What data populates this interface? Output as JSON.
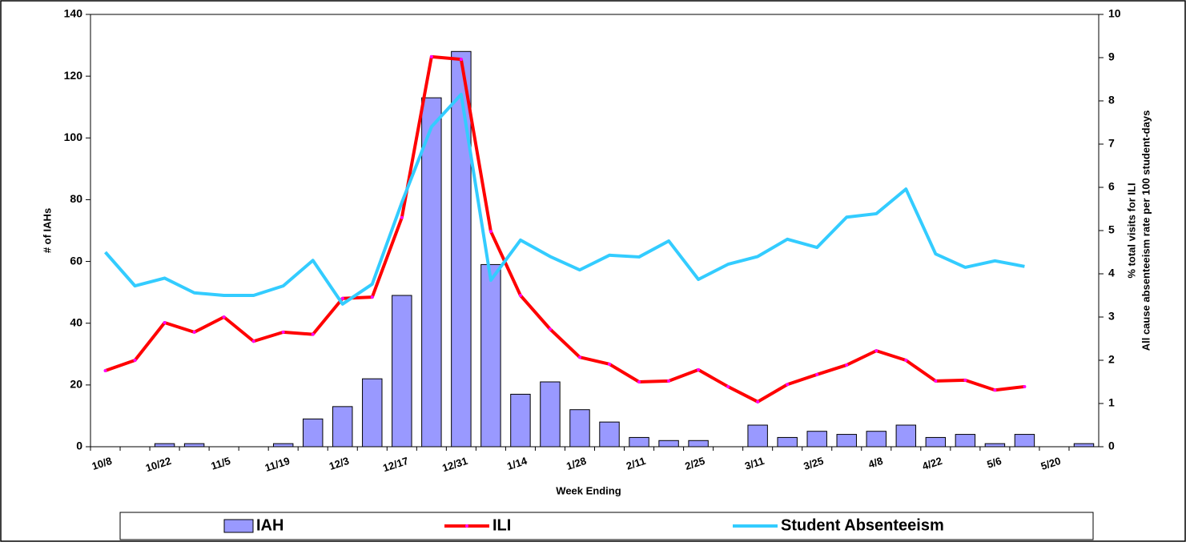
{
  "chart_data": {
    "type": "bar_line",
    "x_label": "Week Ending",
    "y_label": "# of IAHs",
    "y2_label": [
      "% total visits for ILI",
      "All cause absenteeism rate per 100 student-days"
    ],
    "categories": [
      "10/8",
      null,
      "10/22",
      null,
      "11/5",
      null,
      "11/19",
      null,
      "12/3",
      null,
      "12/17",
      null,
      "12/31",
      null,
      "1/14",
      null,
      "1/28",
      null,
      "2/11",
      null,
      "2/25",
      null,
      "3/11",
      null,
      "3/25",
      null,
      "4/8",
      null,
      "4/22",
      null,
      "5/6",
      null,
      "5/20",
      null
    ],
    "series": [
      {
        "name": "IAH",
        "type": "bar",
        "color": "#9999ff",
        "axis": "y",
        "values": [
          null,
          null,
          1,
          1,
          null,
          null,
          1,
          9,
          13,
          22,
          49,
          113,
          128,
          59,
          17,
          21,
          12,
          8,
          3,
          2,
          2,
          null,
          7,
          3,
          5,
          4,
          5,
          7,
          3,
          4,
          1,
          4,
          null,
          1
        ]
      },
      {
        "name": "ILI",
        "type": "line",
        "color": "#ff0000",
        "marker_color": "#ff00ff",
        "axis": "y2",
        "values": [
          1.76,
          2.0,
          2.87,
          2.65,
          3.0,
          2.44,
          2.65,
          2.6,
          3.43,
          3.46,
          5.3,
          9.02,
          8.96,
          4.98,
          3.5,
          2.72,
          2.07,
          1.91,
          1.5,
          1.52,
          1.78,
          1.39,
          1.04,
          1.44,
          1.67,
          1.89,
          2.22,
          2.0,
          1.52,
          1.54,
          1.31,
          1.39,
          null,
          null
        ]
      },
      {
        "name": "Student Absenteeism",
        "type": "line",
        "color": "#33ccff",
        "axis": "y2",
        "values": [
          4.5,
          3.72,
          3.9,
          3.56,
          3.5,
          3.5,
          3.72,
          4.31,
          3.3,
          3.76,
          5.65,
          7.4,
          8.15,
          3.85,
          4.78,
          4.4,
          4.09,
          4.43,
          4.39,
          4.76,
          3.87,
          4.22,
          4.4,
          4.8,
          4.61,
          5.31,
          5.39,
          5.96,
          4.46,
          4.15,
          4.3,
          4.17,
          null,
          null
        ]
      }
    ],
    "ylim": [
      0,
      140
    ],
    "yticks": [
      0,
      20,
      40,
      60,
      80,
      100,
      120,
      140
    ],
    "y2lim": [
      0,
      10
    ],
    "y2ticks": [
      0,
      1,
      2,
      3,
      4,
      5,
      6,
      7,
      8,
      9,
      10
    ],
    "grid": false,
    "legend": "bottom"
  }
}
